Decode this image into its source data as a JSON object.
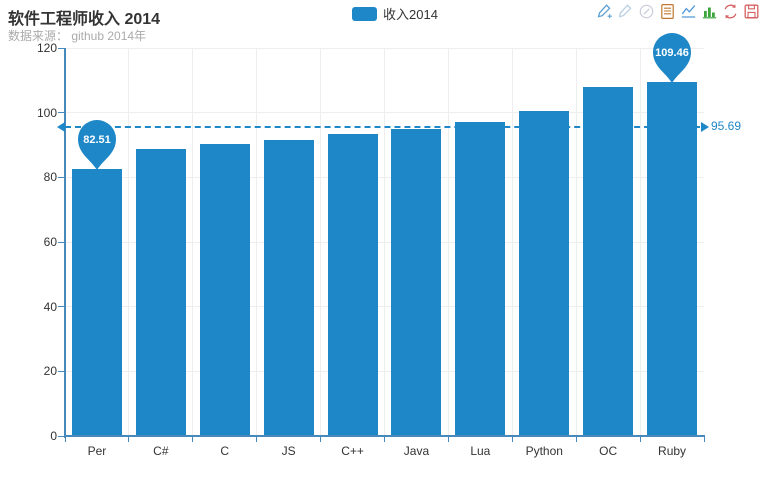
{
  "header": {
    "title": "软件工程师收入 2014",
    "subtitle": "数据来源： github 2014年"
  },
  "legend": {
    "items": [
      {
        "label": "收入2014",
        "color": "#1e87c8"
      }
    ]
  },
  "toolbox": {
    "icons": [
      {
        "name": "mark-add-icon",
        "color": "#5a9fd4"
      },
      {
        "name": "mark-undo-icon",
        "color": "#b9cfe3"
      },
      {
        "name": "mark-clear-icon",
        "color": "#c9cbd9"
      },
      {
        "name": "data-view-icon",
        "color": "#c0792e"
      },
      {
        "name": "line-chart-icon",
        "color": "#4e97d8"
      },
      {
        "name": "bar-chart-icon",
        "color": "#3ca63c"
      },
      {
        "name": "restore-icon",
        "color": "#d65f5f"
      },
      {
        "name": "save-image-icon",
        "color": "#d65f5f"
      }
    ]
  },
  "chart_data": {
    "type": "bar",
    "title": "软件工程师收入 2014",
    "categories": [
      "Per",
      "C#",
      "C",
      "JS",
      "C++",
      "Java",
      "Lua",
      "Python",
      "OC",
      "Ruby"
    ],
    "series": [
      {
        "name": "收入2014",
        "values": [
          82.51,
          88.9,
          90.3,
          91.5,
          93.5,
          95.0,
          97.2,
          100.5,
          108.0,
          109.46
        ]
      }
    ],
    "xlabel": "",
    "ylabel": "",
    "ylim": [
      0,
      120
    ],
    "yticks": [
      0,
      20,
      40,
      60,
      80,
      100,
      120
    ],
    "grid": true,
    "legend_position": "top-center",
    "markline": {
      "type": "average",
      "value": 95.69,
      "label": "95.69"
    },
    "markpoints": [
      {
        "type": "min",
        "category": "Per",
        "value": 82.51,
        "label": "82.51"
      },
      {
        "type": "max",
        "category": "Ruby",
        "value": 109.46,
        "label": "109.46"
      }
    ],
    "colors": {
      "bar": "#1e87c8",
      "axis": "#4789ba",
      "grid": "#eeeeee",
      "pin_text": "#ffffff"
    }
  }
}
